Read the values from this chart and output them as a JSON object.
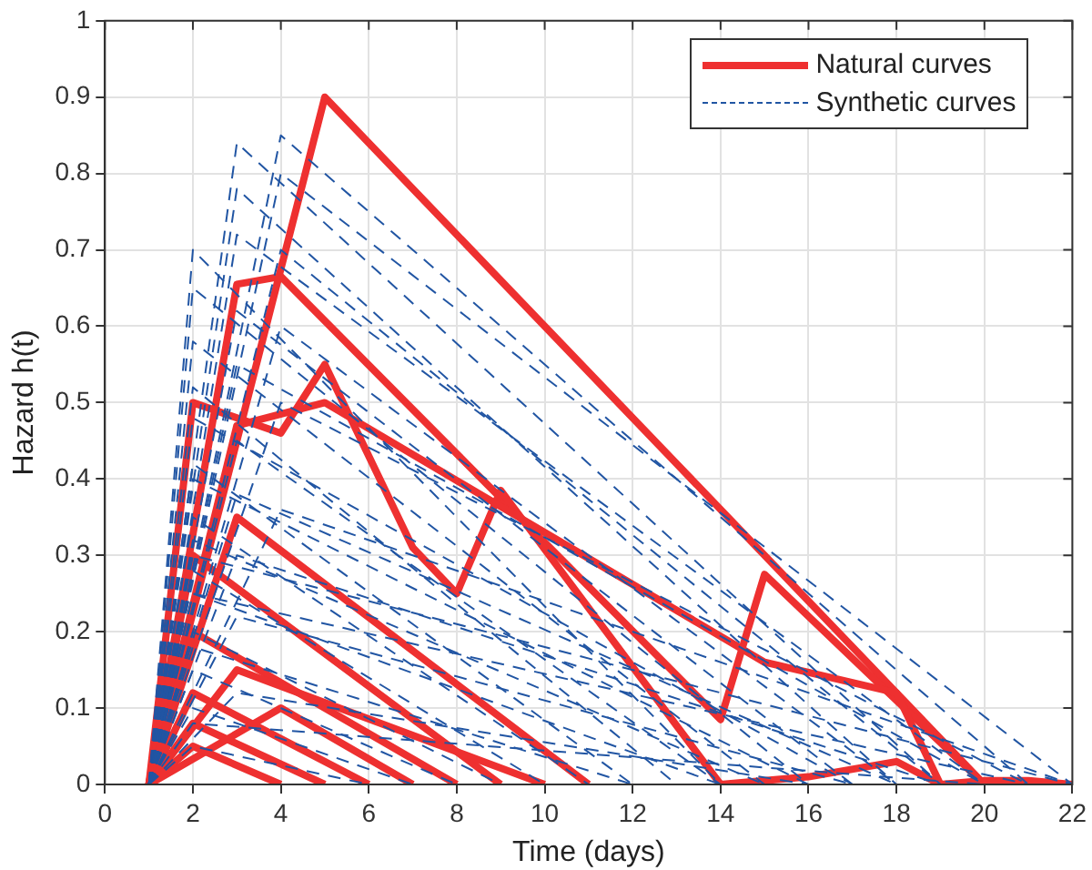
{
  "chart_data": {
    "type": "line",
    "xlabel": "Time (days)",
    "ylabel": "Hazard h(t)",
    "xlim": [
      0,
      22
    ],
    "xticks": [
      0,
      2,
      4,
      6,
      8,
      10,
      12,
      14,
      16,
      18,
      20,
      22
    ],
    "ylim": [
      0,
      1
    ],
    "yticks": [
      0,
      0.1,
      0.2,
      0.3,
      0.4,
      0.5,
      0.6,
      0.7,
      0.8,
      0.9,
      1
    ],
    "grid": true,
    "legend": "top right",
    "marker": "none",
    "series": [
      {
        "name": "Natural curves",
        "color": "#ee3030",
        "line_style": "solid",
        "x": [
          1,
          5,
          20
        ],
        "values": [
          0,
          0.9,
          0
        ]
      },
      {
        "color": "#ee3030",
        "line_style": "solid",
        "x": [
          1,
          3,
          4,
          14,
          15,
          20
        ],
        "values": [
          0,
          0.655,
          0.665,
          0.085,
          0.275,
          0
        ]
      },
      {
        "color": "#ee3030",
        "line_style": "solid",
        "x": [
          1,
          2,
          4,
          5,
          7,
          8,
          9,
          14,
          16,
          18,
          19,
          20,
          21,
          22
        ],
        "values": [
          0,
          0.5,
          0.46,
          0.55,
          0.31,
          0.25,
          0.385,
          0,
          0.01,
          0.03,
          0,
          0.005,
          0.005,
          0
        ]
      },
      {
        "color": "#ee3030",
        "line_style": "solid",
        "x": [
          1,
          3,
          5,
          15,
          18,
          19
        ],
        "values": [
          0,
          0.47,
          0.5,
          0.16,
          0.12,
          0
        ]
      },
      {
        "color": "#ee3030",
        "line_style": "solid",
        "x": [
          1,
          3,
          11
        ],
        "values": [
          0,
          0.35,
          0
        ]
      },
      {
        "color": "#ee3030",
        "line_style": "solid",
        "x": [
          1,
          2,
          9
        ],
        "values": [
          0,
          0.3,
          0
        ]
      },
      {
        "color": "#ee3030",
        "line_style": "solid",
        "x": [
          1,
          2,
          8
        ],
        "values": [
          0,
          0.2,
          0
        ]
      },
      {
        "color": "#ee3030",
        "line_style": "solid",
        "x": [
          1,
          3,
          10
        ],
        "values": [
          0,
          0.15,
          0
        ]
      },
      {
        "color": "#ee3030",
        "line_style": "solid",
        "x": [
          1,
          2,
          6
        ],
        "values": [
          0,
          0.12,
          0
        ]
      },
      {
        "color": "#ee3030",
        "line_style": "solid",
        "x": [
          1,
          2,
          5
        ],
        "values": [
          0,
          0.08,
          0
        ]
      },
      {
        "color": "#ee3030",
        "line_style": "solid",
        "x": [
          1,
          4,
          7
        ],
        "values": [
          0,
          0.1,
          0
        ]
      },
      {
        "color": "#ee3030",
        "line_style": "solid",
        "x": [
          1,
          2,
          4
        ],
        "values": [
          0,
          0.05,
          0
        ]
      },
      {
        "name": "Synthetic curves",
        "color": "#2155a3",
        "line_style": "dashed",
        "x": [
          1,
          3,
          19
        ],
        "values": [
          0,
          0.84,
          0
        ]
      },
      {
        "color": "#2155a3",
        "line_style": "dashed",
        "x": [
          1,
          4,
          21
        ],
        "values": [
          0,
          0.85,
          0
        ]
      },
      {
        "color": "#2155a3",
        "line_style": "dashed",
        "x": [
          1,
          2,
          14
        ],
        "values": [
          0,
          0.7,
          0
        ]
      },
      {
        "color": "#2155a3",
        "line_style": "dashed",
        "x": [
          1,
          3,
          18
        ],
        "values": [
          0,
          0.78,
          0
        ]
      },
      {
        "color": "#2155a3",
        "line_style": "dashed",
        "x": [
          1,
          4,
          22
        ],
        "values": [
          0,
          0.8,
          0
        ]
      },
      {
        "color": "#2155a3",
        "line_style": "dashed",
        "x": [
          1,
          3,
          20
        ],
        "values": [
          0,
          0.72,
          0
        ]
      },
      {
        "color": "#2155a3",
        "line_style": "dashed",
        "x": [
          1,
          2,
          16
        ],
        "values": [
          0,
          0.65,
          0
        ]
      },
      {
        "color": "#2155a3",
        "line_style": "dashed",
        "x": [
          1,
          3,
          17
        ],
        "values": [
          0,
          0.62,
          0
        ]
      },
      {
        "color": "#2155a3",
        "line_style": "dashed",
        "x": [
          1,
          4,
          19
        ],
        "values": [
          0,
          0.7,
          0
        ]
      },
      {
        "color": "#2155a3",
        "line_style": "dashed",
        "x": [
          1,
          2,
          15
        ],
        "values": [
          0,
          0.58,
          0
        ]
      },
      {
        "color": "#2155a3",
        "line_style": "dashed",
        "x": [
          1,
          3,
          20
        ],
        "values": [
          0,
          0.55,
          0
        ]
      },
      {
        "color": "#2155a3",
        "line_style": "dashed",
        "x": [
          1,
          2,
          13
        ],
        "values": [
          0,
          0.52,
          0
        ]
      },
      {
        "color": "#2155a3",
        "line_style": "dashed",
        "x": [
          1,
          4,
          18
        ],
        "values": [
          0,
          0.6,
          0
        ]
      },
      {
        "color": "#2155a3",
        "line_style": "dashed",
        "x": [
          1,
          2,
          17
        ],
        "values": [
          0,
          0.48,
          0
        ]
      },
      {
        "color": "#2155a3",
        "line_style": "dashed",
        "x": [
          1,
          3,
          14
        ],
        "values": [
          0,
          0.45,
          0
        ]
      },
      {
        "color": "#2155a3",
        "line_style": "dashed",
        "x": [
          1,
          2,
          12
        ],
        "values": [
          0,
          0.42,
          0
        ]
      },
      {
        "color": "#2155a3",
        "line_style": "dashed",
        "x": [
          1,
          4,
          21
        ],
        "values": [
          0,
          0.5,
          0
        ]
      },
      {
        "color": "#2155a3",
        "line_style": "dashed",
        "x": [
          1,
          2,
          16
        ],
        "values": [
          0,
          0.4,
          0
        ]
      },
      {
        "color": "#2155a3",
        "line_style": "dashed",
        "x": [
          1,
          3,
          18
        ],
        "values": [
          0,
          0.38,
          0
        ]
      },
      {
        "color": "#2155a3",
        "line_style": "dashed",
        "x": [
          1,
          2,
          11
        ],
        "values": [
          0,
          0.35,
          0
        ]
      },
      {
        "color": "#2155a3",
        "line_style": "dashed",
        "x": [
          1,
          2,
          15
        ],
        "values": [
          0,
          0.32,
          0
        ]
      },
      {
        "color": "#2155a3",
        "line_style": "dashed",
        "x": [
          1,
          3,
          19
        ],
        "values": [
          0,
          0.3,
          0
        ]
      },
      {
        "color": "#2155a3",
        "line_style": "dashed",
        "x": [
          1,
          2,
          10
        ],
        "values": [
          0,
          0.28,
          0
        ]
      },
      {
        "color": "#2155a3",
        "line_style": "dashed",
        "x": [
          1,
          2,
          14
        ],
        "values": [
          0,
          0.25,
          0
        ]
      },
      {
        "color": "#2155a3",
        "line_style": "dashed",
        "x": [
          1,
          3,
          17
        ],
        "values": [
          0,
          0.22,
          0
        ]
      },
      {
        "color": "#2155a3",
        "line_style": "dashed",
        "x": [
          1,
          2,
          9
        ],
        "values": [
          0,
          0.2,
          0
        ]
      },
      {
        "color": "#2155a3",
        "line_style": "dashed",
        "x": [
          1,
          2,
          12
        ],
        "values": [
          0,
          0.18,
          0
        ]
      },
      {
        "color": "#2155a3",
        "line_style": "dashed",
        "x": [
          1,
          2,
          8
        ],
        "values": [
          0,
          0.15,
          0
        ]
      },
      {
        "color": "#2155a3",
        "line_style": "dashed",
        "x": [
          1,
          3,
          16
        ],
        "values": [
          0,
          0.12,
          0
        ]
      },
      {
        "color": "#2155a3",
        "line_style": "dashed",
        "x": [
          1,
          2,
          7
        ],
        "values": [
          0,
          0.1,
          0
        ]
      },
      {
        "color": "#2155a3",
        "line_style": "dashed",
        "x": [
          1,
          2,
          20
        ],
        "values": [
          0,
          0.08,
          0
        ]
      },
      {
        "color": "#2155a3",
        "line_style": "dashed",
        "x": [
          1,
          2,
          6
        ],
        "values": [
          0,
          0.05,
          0
        ]
      },
      {
        "color": "#2155a3",
        "line_style": "dashed",
        "x": [
          1,
          2,
          22
        ],
        "values": [
          0,
          0.3,
          0
        ]
      },
      {
        "color": "#2155a3",
        "line_style": "dashed",
        "x": [
          1,
          2,
          21
        ],
        "values": [
          0,
          0.25,
          0
        ]
      },
      {
        "color": "#2155a3",
        "line_style": "dashed",
        "x": [
          1,
          4,
          22
        ],
        "values": [
          0,
          0.36,
          0
        ]
      }
    ]
  }
}
